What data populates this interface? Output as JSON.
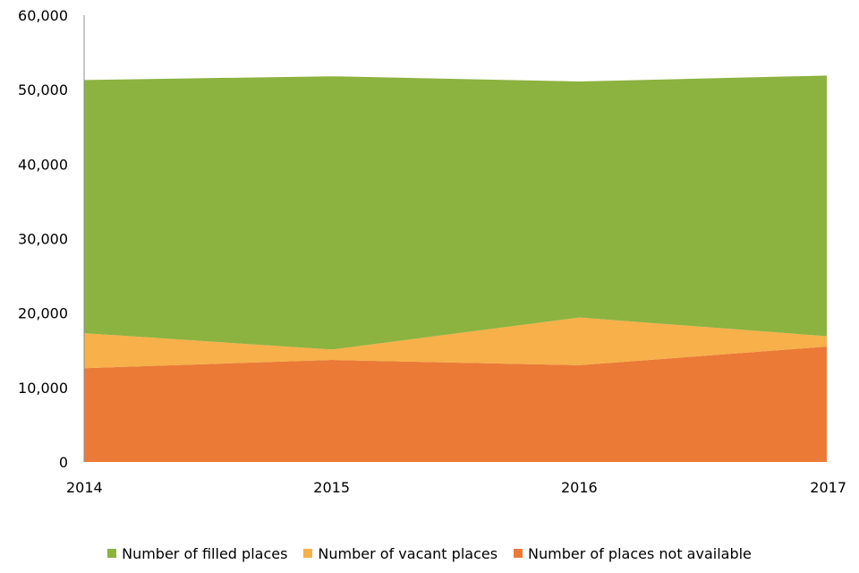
{
  "colors": {
    "filled": "#8cb240",
    "vacant": "#f7b04a",
    "not_available": "#eb7a37",
    "axis": "#8c8c8c"
  },
  "chart_data": {
    "type": "area",
    "stacked": true,
    "x": [
      "2014",
      "2015",
      "2016",
      "2017"
    ],
    "ylim": [
      0,
      60000
    ],
    "yticks": [
      "0",
      "10,000",
      "20,000",
      "30,000",
      "40,000",
      "50,000",
      "60,000"
    ],
    "ytick_values": [
      0,
      10000,
      20000,
      30000,
      40000,
      50000,
      60000
    ],
    "grid": false,
    "legend_position": "bottom",
    "series": [
      {
        "key": "not_available",
        "name": "Number of places not available",
        "values": [
          12600,
          13700,
          13000,
          15500
        ]
      },
      {
        "key": "vacant",
        "name": "Number of vacant places",
        "values": [
          4700,
          1400,
          6400,
          1400
        ]
      },
      {
        "key": "filled",
        "name": "Number of filled places",
        "values": [
          34000,
          36700,
          31700,
          35000
        ]
      }
    ],
    "legend_order": [
      "filled",
      "vacant",
      "not_available"
    ]
  }
}
